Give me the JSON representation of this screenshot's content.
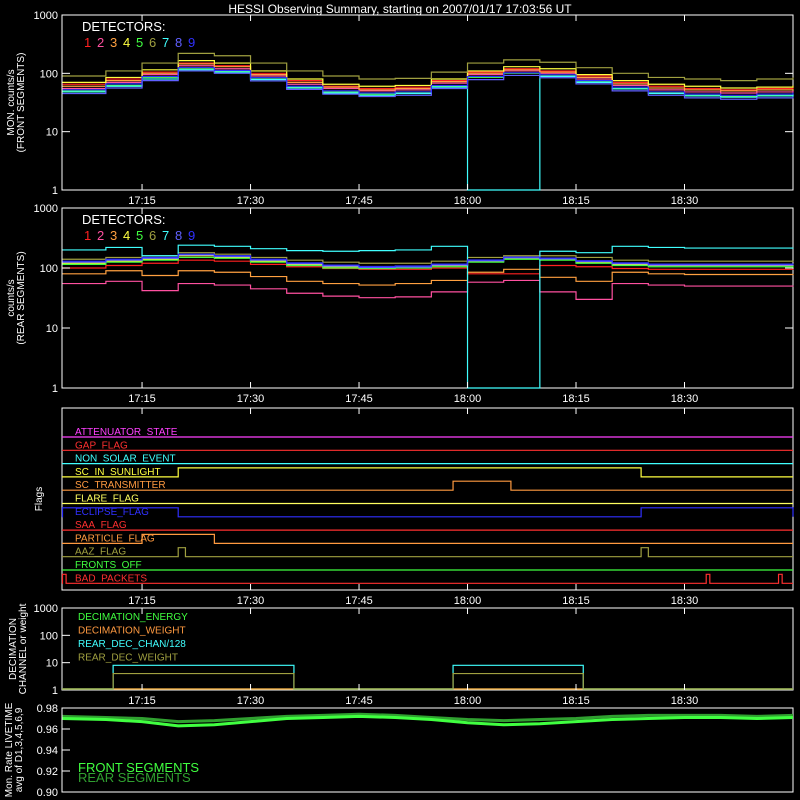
{
  "title": "HESSI Observing Summary, starting on 2007/01/17 17:03:56 UT",
  "time_ticks": [
    "17:15",
    "17:30",
    "17:45",
    "18:00",
    "18:15",
    "18:30"
  ],
  "detectors_label": "DETECTORS:",
  "detector_numbers": [
    "1",
    "2",
    "3",
    "4",
    "5",
    "6",
    "7",
    "8",
    "9"
  ],
  "detector_colors": [
    "#ff2020",
    "#ff50a0",
    "#ffa040",
    "#ffff40",
    "#40ff40",
    "#a0a040",
    "#40ffff",
    "#6060ff",
    "#3030ff"
  ],
  "flag_colors": {
    "attenuator": "#ff40ff",
    "gap": "#ff3030",
    "non_solar": "#40ffff",
    "sunlight": "#ffff40",
    "transmitter": "#ff9a40",
    "flare": "#ffff60",
    "eclipse": "#3030ff",
    "saa": "#ff3030",
    "particle": "#ff9a40",
    "aaz": "#a0a040",
    "fronts_off": "#40ff40",
    "bad_packets": "#ff3030"
  },
  "decimation_colors": {
    "energy": "#40ff40",
    "weight": "#ff9a40",
    "rear_chan": "#40ffff",
    "rear_weight": "#a0a040"
  },
  "livetime_colors": {
    "front": "#40ff40",
    "rear": "#30a030"
  },
  "chart_data": [
    {
      "type": "line",
      "name": "front",
      "ylabel": [
        "MON. counts/s",
        "(FRONT SEGMENTS)"
      ],
      "yscale": "log",
      "ylim": [
        1,
        1000
      ],
      "yticks": [
        "1",
        "10",
        "100",
        "1000"
      ],
      "xlim": [
        "17:03:56",
        "18:45"
      ],
      "x": [
        "17:04",
        "17:10",
        "17:15",
        "17:20",
        "17:25",
        "17:30",
        "17:35",
        "17:40",
        "17:45",
        "17:50",
        "17:55",
        "18:00",
        "18:05",
        "18:10",
        "18:15",
        "18:20",
        "18:25",
        "18:30",
        "18:35",
        "18:40",
        "18:45"
      ],
      "series": [
        {
          "values": [
            65,
            80,
            105,
            150,
            135,
            100,
            75,
            60,
            55,
            58,
            75,
            105,
            120,
            110,
            90,
            70,
            60,
            55,
            52,
            55,
            58
          ]
        },
        {
          "values": [
            55,
            70,
            95,
            135,
            120,
            90,
            65,
            55,
            50,
            52,
            68,
            95,
            110,
            100,
            80,
            62,
            52,
            48,
            46,
            48,
            50
          ]
        },
        {
          "values": [
            60,
            75,
            100,
            145,
            130,
            95,
            70,
            58,
            52,
            55,
            72,
            100,
            115,
            105,
            85,
            66,
            56,
            52,
            50,
            52,
            54
          ]
        },
        {
          "values": [
            70,
            85,
            115,
            165,
            150,
            110,
            80,
            65,
            60,
            62,
            80,
            110,
            130,
            120,
            95,
            75,
            65,
            60,
            56,
            58,
            62
          ]
        },
        {
          "values": [
            50,
            62,
            85,
            120,
            110,
            80,
            58,
            48,
            44,
            46,
            60,
            85,
            100,
            90,
            72,
            55,
            46,
            42,
            40,
            42,
            45
          ]
        },
        {
          "values": [
            90,
            110,
            150,
            220,
            200,
            150,
            110,
            90,
            80,
            82,
            105,
            150,
            170,
            155,
            125,
            100,
            85,
            80,
            75,
            80,
            85
          ]
        },
        {
          "values": [
            48,
            60,
            80,
            115,
            105,
            78,
            56,
            46,
            42,
            45,
            58,
            1,
            1,
            88,
            70,
            54,
            45,
            41,
            39,
            41,
            44
          ]
        },
        {
          "values": [
            45,
            56,
            75,
            110,
            100,
            74,
            53,
            44,
            40,
            42,
            55,
            78,
            92,
            84,
            66,
            50,
            42,
            38,
            36,
            38,
            40
          ]
        },
        {
          "values": [
            52,
            66,
            88,
            125,
            112,
            84,
            60,
            50,
            46,
            48,
            62,
            88,
            102,
            94,
            75,
            58,
            48,
            44,
            42,
            44,
            47
          ]
        }
      ]
    },
    {
      "type": "line",
      "name": "rear",
      "ylabel": [
        "counts/s",
        "(REAR SEGMENTS)"
      ],
      "yscale": "log",
      "ylim": [
        1,
        1000
      ],
      "yticks": [
        "1",
        "10",
        "100",
        "1000"
      ],
      "xlim": [
        "17:03:56",
        "18:45"
      ],
      "x": [
        "17:04",
        "17:10",
        "17:15",
        "17:20",
        "17:25",
        "17:30",
        "17:35",
        "17:40",
        "17:45",
        "17:50",
        "17:55",
        "18:00",
        "18:05",
        "18:10",
        "18:15",
        "18:20",
        "18:25",
        "18:30",
        "18:35",
        "18:40",
        "18:45"
      ],
      "series": [
        {
          "values": [
            100,
            110,
            120,
            135,
            130,
            115,
            105,
            98,
            95,
            95,
            100,
            80,
            80,
            110,
            105,
            98,
            95,
            95,
            95,
            95,
            96
          ]
        },
        {
          "values": [
            55,
            60,
            42,
            55,
            52,
            45,
            38,
            34,
            32,
            33,
            40,
            58,
            62,
            40,
            30,
            55,
            52,
            50,
            50,
            50,
            51
          ]
        },
        {
          "values": [
            80,
            90,
            75,
            90,
            85,
            72,
            60,
            55,
            52,
            55,
            62,
            85,
            95,
            70,
            60,
            85,
            80,
            78,
            78,
            78,
            80
          ]
        },
        {
          "values": [
            120,
            130,
            140,
            160,
            150,
            130,
            115,
            105,
            100,
            102,
            110,
            130,
            145,
            140,
            125,
            115,
            110,
            110,
            110,
            110,
            112
          ]
        },
        {
          "values": [
            115,
            125,
            135,
            150,
            145,
            125,
            110,
            100,
            98,
            100,
            105,
            125,
            140,
            135,
            120,
            110,
            105,
            105,
            105,
            105,
            108
          ]
        },
        {
          "values": [
            140,
            150,
            160,
            180,
            170,
            150,
            135,
            125,
            120,
            120,
            130,
            150,
            160,
            160,
            150,
            135,
            130,
            130,
            130,
            130,
            132
          ]
        },
        {
          "values": [
            200,
            220,
            160,
            240,
            230,
            210,
            195,
            190,
            195,
            200,
            230,
            1,
            1,
            190,
            180,
            230,
            220,
            215,
            215,
            215,
            218
          ]
        },
        {
          "values": [
            125,
            135,
            145,
            165,
            155,
            135,
            118,
            108,
            102,
            104,
            112,
            132,
            148,
            142,
            128,
            118,
            112,
            112,
            112,
            112,
            114
          ]
        },
        {
          "values": [
            130,
            140,
            150,
            170,
            160,
            140,
            122,
            112,
            106,
            108,
            116,
            136,
            152,
            146,
            132,
            122,
            116,
            116,
            116,
            116,
            118
          ]
        }
      ]
    },
    {
      "type": "table",
      "name": "flags",
      "ylabel": "Flags",
      "labels": [
        "ATTENUATOR_STATE",
        "GAP_FLAG",
        "NON_SOLAR_EVENT",
        "SC_IN_SUNLIGHT",
        "SC_TRANSMITTER",
        "FLARE_FLAG",
        "ECLIPSE_FLAG",
        "SAA_FLAG",
        "PARTICLE_FLAG",
        "AAZ_FLAG",
        "FRONTS_OFF",
        "BAD_PACKETS"
      ],
      "keys": [
        "attenuator",
        "gap",
        "non_solar",
        "sunlight",
        "transmitter",
        "flare",
        "eclipse",
        "saa",
        "particle",
        "aaz",
        "fronts_off",
        "bad_packets"
      ],
      "on_intervals": {
        "attenuator": [],
        "gap": [],
        "non_solar": [],
        "sunlight": [
          [
            "17:20",
            "18:24"
          ]
        ],
        "transmitter": [
          [
            "17:58",
            "18:06"
          ]
        ],
        "flare": [],
        "eclipse": [
          [
            "17:04",
            "17:20"
          ],
          [
            "18:24",
            "18:45"
          ]
        ],
        "saa": [],
        "particle": [
          [
            "17:15",
            "17:25"
          ]
        ],
        "aaz": [
          [
            "17:20",
            "17:21"
          ],
          [
            "18:24",
            "18:25"
          ]
        ],
        "fronts_off": [],
        "bad_packets": [
          [
            "17:04",
            "17:04:30"
          ],
          [
            "18:33",
            "18:33:30"
          ],
          [
            "18:43",
            "18:43:30"
          ]
        ]
      }
    },
    {
      "type": "line",
      "name": "decimation",
      "ylabel": [
        "DECIMATION",
        "CHANNEL or weight"
      ],
      "yscale": "log",
      "ylim": [
        1,
        1000
      ],
      "yticks": [
        "1",
        "10",
        "100",
        "1000"
      ],
      "legend": [
        "DECIMATION_ENERGY",
        "DECIMATION_WEIGHT",
        "REAR_DEC_CHAN/128",
        "REAR_DEC_WEIGHT"
      ],
      "series": [
        {
          "key": "energy",
          "intervals": []
        },
        {
          "key": "weight",
          "intervals": []
        },
        {
          "key": "rear_chan",
          "level": 8,
          "intervals": [
            [
              "17:11",
              "17:36"
            ],
            [
              "17:58",
              "18:16"
            ]
          ]
        },
        {
          "key": "rear_weight",
          "level": 4,
          "intervals": [
            [
              "17:11",
              "17:36"
            ],
            [
              "17:58",
              "18:16"
            ]
          ]
        }
      ]
    },
    {
      "type": "line",
      "name": "livetime",
      "ylabel": [
        "Mon. Rate LIVETIME",
        "avg of D1,3,4,5,6,9"
      ],
      "ylim": [
        0.9,
        0.98
      ],
      "yticks": [
        "0.90",
        "0.92",
        "0.94",
        "0.96",
        "0.98"
      ],
      "legend": [
        "FRONT SEGMENTS",
        "REAR SEGMENTS"
      ],
      "x": [
        "17:04",
        "17:10",
        "17:15",
        "17:20",
        "17:25",
        "17:30",
        "17:35",
        "17:40",
        "17:45",
        "17:50",
        "17:55",
        "18:00",
        "18:05",
        "18:10",
        "18:15",
        "18:20",
        "18:25",
        "18:30",
        "18:35",
        "18:40",
        "18:45"
      ],
      "series": [
        {
          "key": "front",
          "values": [
            0.97,
            0.969,
            0.967,
            0.963,
            0.964,
            0.967,
            0.97,
            0.971,
            0.972,
            0.971,
            0.969,
            0.966,
            0.964,
            0.965,
            0.967,
            0.969,
            0.97,
            0.971,
            0.971,
            0.97,
            0.971
          ]
        },
        {
          "key": "rear",
          "values": [
            0.972,
            0.971,
            0.97,
            0.967,
            0.968,
            0.97,
            0.972,
            0.973,
            0.974,
            0.973,
            0.971,
            0.969,
            0.968,
            0.969,
            0.97,
            0.972,
            0.973,
            0.973,
            0.973,
            0.972,
            0.973
          ]
        }
      ]
    }
  ]
}
